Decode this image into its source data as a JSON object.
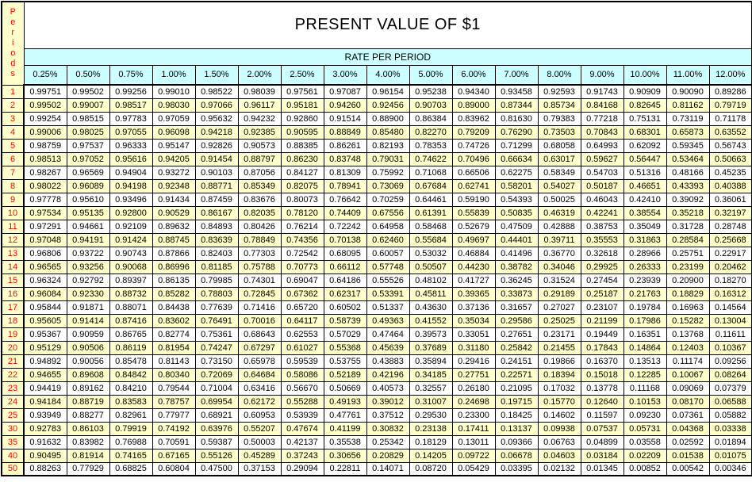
{
  "colors": {
    "header_fill": "#CCFFFF",
    "body_fill": "#FFFFCC",
    "period_text": "#FF0000",
    "border": "#000000"
  },
  "table": {
    "title": "PRESENT VALUE OF $1",
    "subtitle": "RATE PER PERIOD",
    "periods_label": "Periods",
    "rates": [
      "0.25%",
      "0.50%",
      "0.75%",
      "1.00%",
      "1.50%",
      "2.00%",
      "2.50%",
      "3.00%",
      "4.00%",
      "5.00%",
      "6.00%",
      "7.00%",
      "8.00%",
      "9.00%",
      "10.00%",
      "11.00%",
      "12.00%"
    ],
    "rows": [
      {
        "period": "1",
        "values": [
          "0.99751",
          "0.99502",
          "0.99256",
          "0.99010",
          "0.98522",
          "0.98039",
          "0.97561",
          "0.97087",
          "0.96154",
          "0.95238",
          "0.94340",
          "0.93458",
          "0.92593",
          "0.91743",
          "0.90909",
          "0.90090",
          "0.89286"
        ]
      },
      {
        "period": "2",
        "values": [
          "0.99502",
          "0.99007",
          "0.98517",
          "0.98030",
          "0.97066",
          "0.96117",
          "0.95181",
          "0.94260",
          "0.92456",
          "0.90703",
          "0.89000",
          "0.87344",
          "0.85734",
          "0.84168",
          "0.82645",
          "0.81162",
          "0.79719"
        ]
      },
      {
        "period": "3",
        "values": [
          "0.99254",
          "0.98515",
          "0.97783",
          "0.97059",
          "0.95632",
          "0.94232",
          "0.92860",
          "0.91514",
          "0.88900",
          "0.86384",
          "0.83962",
          "0.81630",
          "0.79383",
          "0.77218",
          "0.75131",
          "0.73119",
          "0.71178"
        ]
      },
      {
        "period": "4",
        "values": [
          "0.99006",
          "0.98025",
          "0.97055",
          "0.96098",
          "0.94218",
          "0.92385",
          "0.90595",
          "0.88849",
          "0.85480",
          "0.82270",
          "0.79209",
          "0.76290",
          "0.73503",
          "0.70843",
          "0.68301",
          "0.65873",
          "0.63552"
        ]
      },
      {
        "period": "5",
        "values": [
          "0.98759",
          "0.97537",
          "0.96333",
          "0.95147",
          "0.92826",
          "0.90573",
          "0.88385",
          "0.86261",
          "0.82193",
          "0.78353",
          "0.74726",
          "0.71299",
          "0.68058",
          "0.64993",
          "0.62092",
          "0.59345",
          "0.56743"
        ]
      },
      {
        "period": "6",
        "values": [
          "0.98513",
          "0.97052",
          "0.95616",
          "0.94205",
          "0.91454",
          "0.88797",
          "0.86230",
          "0.83748",
          "0.79031",
          "0.74622",
          "0.70496",
          "0.66634",
          "0.63017",
          "0.59627",
          "0.56447",
          "0.53464",
          "0.50663"
        ]
      },
      {
        "period": "7",
        "values": [
          "0.98267",
          "0.96569",
          "0.94904",
          "0.93272",
          "0.90103",
          "0.87056",
          "0.84127",
          "0.81309",
          "0.75992",
          "0.71068",
          "0.66506",
          "0.62275",
          "0.58349",
          "0.54703",
          "0.51316",
          "0.48166",
          "0.45235"
        ]
      },
      {
        "period": "8",
        "values": [
          "0.98022",
          "0.96089",
          "0.94198",
          "0.92348",
          "0.88771",
          "0.85349",
          "0.82075",
          "0.78941",
          "0.73069",
          "0.67684",
          "0.62741",
          "0.58201",
          "0.54027",
          "0.50187",
          "0.46651",
          "0.43393",
          "0.40388"
        ]
      },
      {
        "period": "9",
        "values": [
          "0.97778",
          "0.95610",
          "0.93496",
          "0.91434",
          "0.87459",
          "0.83676",
          "0.80073",
          "0.76642",
          "0.70259",
          "0.64461",
          "0.59190",
          "0.54393",
          "0.50025",
          "0.46043",
          "0.42410",
          "0.39092",
          "0.36061"
        ]
      },
      {
        "period": "10",
        "values": [
          "0.97534",
          "0.95135",
          "0.92800",
          "0.90529",
          "0.86167",
          "0.82035",
          "0.78120",
          "0.74409",
          "0.67556",
          "0.61391",
          "0.55839",
          "0.50835",
          "0.46319",
          "0.42241",
          "0.38554",
          "0.35218",
          "0.32197"
        ]
      },
      {
        "period": "11",
        "values": [
          "0.97291",
          "0.94661",
          "0.92109",
          "0.89632",
          "0.84893",
          "0.80426",
          "0.76214",
          "0.72242",
          "0.64958",
          "0.58468",
          "0.52679",
          "0.47509",
          "0.42888",
          "0.38753",
          "0.35049",
          "0.31728",
          "0.28748"
        ]
      },
      {
        "period": "12",
        "values": [
          "0.97048",
          "0.94191",
          "0.91424",
          "0.88745",
          "0.83639",
          "0.78849",
          "0.74356",
          "0.70138",
          "0.62460",
          "0.55684",
          "0.49697",
          "0.44401",
          "0.39711",
          "0.35553",
          "0.31863",
          "0.28584",
          "0.25668"
        ]
      },
      {
        "period": "13",
        "values": [
          "0.96806",
          "0.93722",
          "0.90743",
          "0.87866",
          "0.82403",
          "0.77303",
          "0.72542",
          "0.68095",
          "0.60057",
          "0.53032",
          "0.46884",
          "0.41496",
          "0.36770",
          "0.32618",
          "0.28966",
          "0.25751",
          "0.22917"
        ]
      },
      {
        "period": "14",
        "values": [
          "0.96565",
          "0.93256",
          "0.90068",
          "0.86996",
          "0.81185",
          "0.75788",
          "0.70773",
          "0.66112",
          "0.57748",
          "0.50507",
          "0.44230",
          "0.38782",
          "0.34046",
          "0.29925",
          "0.26333",
          "0.23199",
          "0.20462"
        ]
      },
      {
        "period": "15",
        "values": [
          "0.96324",
          "0.92792",
          "0.89397",
          "0.86135",
          "0.79985",
          "0.74301",
          "0.69047",
          "0.64186",
          "0.55526",
          "0.48102",
          "0.41727",
          "0.36245",
          "0.31524",
          "0.27454",
          "0.23939",
          "0.20900",
          "0.18270"
        ]
      },
      {
        "period": "16",
        "values": [
          "0.96084",
          "0.92330",
          "0.88732",
          "0.85282",
          "0.78803",
          "0.72845",
          "0.67362",
          "0.62317",
          "0.53391",
          "0.45811",
          "0.39365",
          "0.33873",
          "0.29189",
          "0.25187",
          "0.21763",
          "0.18829",
          "0.16312"
        ]
      },
      {
        "period": "17",
        "values": [
          "0.95844",
          "0.91871",
          "0.88071",
          "0.84438",
          "0.77639",
          "0.71416",
          "0.65720",
          "0.60502",
          "0.51337",
          "0.43630",
          "0.37136",
          "0.31657",
          "0.27027",
          "0.23107",
          "0.19784",
          "0.16963",
          "0.14564"
        ]
      },
      {
        "period": "18",
        "values": [
          "0.95605",
          "0.91414",
          "0.87416",
          "0.83602",
          "0.76491",
          "0.70016",
          "0.64117",
          "0.58739",
          "0.49363",
          "0.41552",
          "0.35034",
          "0.29586",
          "0.25025",
          "0.21199",
          "0.17986",
          "0.15282",
          "0.13004"
        ]
      },
      {
        "period": "19",
        "values": [
          "0.95367",
          "0.90959",
          "0.86765",
          "0.82774",
          "0.75361",
          "0.68643",
          "0.62553",
          "0.57029",
          "0.47464",
          "0.39573",
          "0.33051",
          "0.27651",
          "0.23171",
          "0.19449",
          "0.16351",
          "0.13768",
          "0.11611"
        ]
      },
      {
        "period": "20",
        "values": [
          "0.95129",
          "0.90506",
          "0.86119",
          "0.81954",
          "0.74247",
          "0.67297",
          "0.61027",
          "0.55368",
          "0.45639",
          "0.37689",
          "0.31180",
          "0.25842",
          "0.21455",
          "0.17843",
          "0.14864",
          "0.12403",
          "0.10367"
        ]
      },
      {
        "period": "21",
        "values": [
          "0.94892",
          "0.90056",
          "0.85478",
          "0.81143",
          "0.73150",
          "0.65978",
          "0.59539",
          "0.53755",
          "0.43883",
          "0.35894",
          "0.29416",
          "0.24151",
          "0.19866",
          "0.16370",
          "0.13513",
          "0.11174",
          "0.09256"
        ]
      },
      {
        "period": "22",
        "values": [
          "0.94655",
          "0.89608",
          "0.84842",
          "0.80340",
          "0.72069",
          "0.64684",
          "0.58086",
          "0.52189",
          "0.42196",
          "0.34185",
          "0.27751",
          "0.22571",
          "0.18394",
          "0.15018",
          "0.12285",
          "0.10067",
          "0.08264"
        ]
      },
      {
        "period": "23",
        "values": [
          "0.94419",
          "0.89162",
          "0.84210",
          "0.79544",
          "0.71004",
          "0.63416",
          "0.56670",
          "0.50669",
          "0.40573",
          "0.32557",
          "0.26180",
          "0.21095",
          "0.17032",
          "0.13778",
          "0.11168",
          "0.09069",
          "0.07379"
        ]
      },
      {
        "period": "24",
        "values": [
          "0.94184",
          "0.88719",
          "0.83583",
          "0.78757",
          "0.69954",
          "0.62172",
          "0.55288",
          "0.49193",
          "0.39012",
          "0.31007",
          "0.24698",
          "0.19715",
          "0.15770",
          "0.12640",
          "0.10153",
          "0.08170",
          "0.06588"
        ]
      },
      {
        "period": "25",
        "values": [
          "0.93949",
          "0.88277",
          "0.82961",
          "0.77977",
          "0.68921",
          "0.60953",
          "0.53939",
          "0.47761",
          "0.37512",
          "0.29530",
          "0.23300",
          "0.18425",
          "0.14602",
          "0.11597",
          "0.09230",
          "0.07361",
          "0.05882"
        ]
      },
      {
        "period": "30",
        "values": [
          "0.92783",
          "0.86103",
          "0.79919",
          "0.74192",
          "0.63976",
          "0.55207",
          "0.47674",
          "0.41199",
          "0.30832",
          "0.23138",
          "0.17411",
          "0.13137",
          "0.09938",
          "0.07537",
          "0.05731",
          "0.04368",
          "0.03338"
        ]
      },
      {
        "period": "35",
        "values": [
          "0.91632",
          "0.83982",
          "0.76988",
          "0.70591",
          "0.59387",
          "0.50003",
          "0.42137",
          "0.35538",
          "0.25342",
          "0.18129",
          "0.13011",
          "0.09366",
          "0.06763",
          "0.04899",
          "0.03558",
          "0.02592",
          "0.01894"
        ]
      },
      {
        "period": "40",
        "values": [
          "0.90495",
          "0.81914",
          "0.74165",
          "0.67165",
          "0.55126",
          "0.45289",
          "0.37243",
          "0.30656",
          "0.20829",
          "0.14205",
          "0.09722",
          "0.06678",
          "0.04603",
          "0.03184",
          "0.02209",
          "0.01538",
          "0.01075"
        ]
      },
      {
        "period": "50",
        "values": [
          "0.88263",
          "0.77929",
          "0.68825",
          "0.60804",
          "0.47500",
          "0.37153",
          "0.29094",
          "0.22811",
          "0.14071",
          "0.08720",
          "0.05429",
          "0.03395",
          "0.02132",
          "0.01345",
          "0.00852",
          "0.00542",
          "0.00346"
        ]
      }
    ]
  }
}
